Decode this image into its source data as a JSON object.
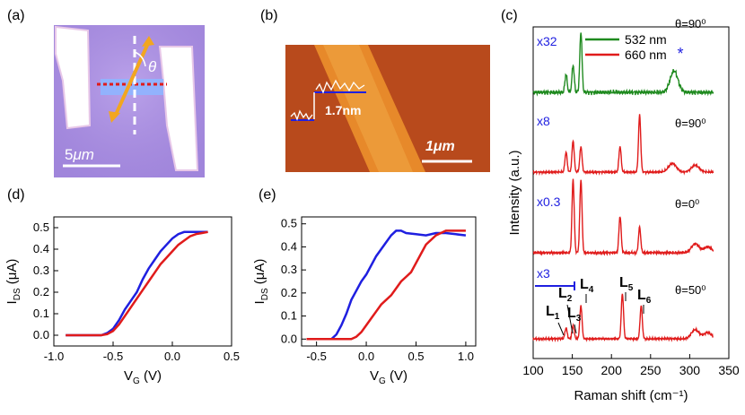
{
  "panels": {
    "a": {
      "label": "(a)",
      "scale_label": "5",
      "scale_unit": "μm",
      "angle": "θ"
    },
    "b": {
      "label": "(b)",
      "height_label": "1.7nm",
      "scale_label": "1μm"
    },
    "c": {
      "label": "(c)"
    },
    "d": {
      "label": "(d)"
    },
    "e": {
      "label": "(e)"
    }
  },
  "colors": {
    "blue": "#1f1fe0",
    "red": "#e01b1b",
    "green": "#1f8a1f"
  },
  "chart_data": [
    {
      "id": "d",
      "type": "line",
      "xlabel": "V_G (V)",
      "ylabel": "I_DS (μA)",
      "xlim": [
        -1.0,
        0.5
      ],
      "ylim": [
        -0.05,
        0.55
      ],
      "xticks": [
        "-1.0",
        "-0.5",
        "0.0",
        "0.5"
      ],
      "yticks": [
        "0.0",
        "0.1",
        "0.2",
        "0.3",
        "0.4",
        "0.5"
      ],
      "series": [
        {
          "name": "blue",
          "color": "#1f1fe0",
          "x": [
            -0.9,
            -0.6,
            -0.55,
            -0.5,
            -0.45,
            -0.4,
            -0.35,
            -0.3,
            -0.25,
            -0.2,
            -0.15,
            -0.1,
            -0.05,
            0.0,
            0.05,
            0.1,
            0.15,
            0.2,
            0.25,
            0.3
          ],
          "y": [
            0.0,
            0.0,
            0.01,
            0.03,
            0.07,
            0.12,
            0.16,
            0.2,
            0.26,
            0.31,
            0.35,
            0.39,
            0.42,
            0.45,
            0.47,
            0.48,
            0.48,
            0.48,
            0.48,
            0.48
          ]
        },
        {
          "name": "red",
          "color": "#e01b1b",
          "x": [
            -0.9,
            -0.6,
            -0.55,
            -0.5,
            -0.45,
            -0.4,
            -0.35,
            -0.3,
            -0.25,
            -0.2,
            -0.15,
            -0.1,
            -0.05,
            0.0,
            0.05,
            0.1,
            0.15,
            0.2,
            0.25,
            0.3
          ],
          "y": [
            0.0,
            0.0,
            0.005,
            0.02,
            0.05,
            0.09,
            0.13,
            0.17,
            0.21,
            0.25,
            0.29,
            0.33,
            0.36,
            0.39,
            0.42,
            0.44,
            0.46,
            0.47,
            0.475,
            0.48
          ]
        }
      ]
    },
    {
      "id": "e",
      "type": "line",
      "xlabel": "V_G (V)",
      "ylabel": "I_DS (μA)",
      "xlim": [
        -0.65,
        1.1
      ],
      "ylim": [
        -0.03,
        0.53
      ],
      "xticks": [
        "-0.5",
        "0.0",
        "0.5",
        "1.0"
      ],
      "yticks": [
        "0.0",
        "0.1",
        "0.2",
        "0.3",
        "0.4",
        "0.5"
      ],
      "series": [
        {
          "name": "blue",
          "color": "#1f1fe0",
          "x": [
            -0.6,
            -0.35,
            -0.3,
            -0.25,
            -0.2,
            -0.15,
            -0.1,
            -0.05,
            0.0,
            0.05,
            0.1,
            0.15,
            0.2,
            0.25,
            0.3,
            0.35,
            0.4,
            0.5,
            0.6,
            0.7,
            0.8,
            0.9,
            1.0
          ],
          "y": [
            0.0,
            0.0,
            0.02,
            0.06,
            0.11,
            0.17,
            0.21,
            0.25,
            0.28,
            0.32,
            0.36,
            0.39,
            0.42,
            0.45,
            0.47,
            0.47,
            0.46,
            0.455,
            0.45,
            0.46,
            0.46,
            0.455,
            0.45
          ]
        },
        {
          "name": "red",
          "color": "#e01b1b",
          "x": [
            -0.6,
            -0.15,
            -0.1,
            -0.05,
            0.0,
            0.05,
            0.1,
            0.15,
            0.2,
            0.25,
            0.3,
            0.35,
            0.4,
            0.45,
            0.5,
            0.55,
            0.6,
            0.7,
            0.8,
            0.9,
            1.0
          ],
          "y": [
            0.0,
            0.0,
            0.01,
            0.03,
            0.06,
            0.09,
            0.12,
            0.15,
            0.17,
            0.19,
            0.22,
            0.25,
            0.27,
            0.29,
            0.33,
            0.37,
            0.41,
            0.45,
            0.47,
            0.47,
            0.47
          ]
        }
      ]
    },
    {
      "id": "c",
      "type": "line",
      "title": "",
      "xlabel": "Raman shift (cm⁻¹)",
      "ylabel": "Intensity (a.u.)",
      "xlim": [
        100,
        350
      ],
      "xticks": [
        "100",
        "150",
        "200",
        "250",
        "300",
        "350"
      ],
      "legend": [
        {
          "name": "532 nm",
          "color": "#1f8a1f"
        },
        {
          "name": "660 nm",
          "color": "#e01b1b"
        }
      ],
      "traces": [
        {
          "scale": "x32",
          "angle": "θ=90⁰",
          "laser": "532 nm",
          "color": "#1f8a1f",
          "peaks": [
            [
              142,
              0.3
            ],
            [
              151,
              0.45
            ],
            [
              161,
              1.0
            ],
            [
              280,
              0.35
            ]
          ],
          "star": "*"
        },
        {
          "scale": "x8",
          "angle": "θ=90⁰",
          "laser": "660 nm",
          "color": "#e01b1b",
          "peaks": [
            [
              142,
              0.35
            ],
            [
              151,
              0.55
            ],
            [
              161,
              0.45
            ],
            [
              211,
              0.45
            ],
            [
              236,
              1.0
            ],
            [
              278,
              0.15
            ],
            [
              307,
              0.12
            ]
          ]
        },
        {
          "scale": "x0.3",
          "angle": "θ=0⁰",
          "laser": "660 nm",
          "color": "#e01b1b",
          "peaks": [
            [
              151,
              1.0
            ],
            [
              161,
              1.0
            ],
            [
              211,
              0.5
            ],
            [
              236,
              0.35
            ],
            [
              307,
              0.12
            ],
            [
              323,
              0.08
            ]
          ]
        },
        {
          "scale": "x3",
          "angle": "θ=50⁰",
          "laser": "660 nm",
          "color": "#e01b1b",
          "peaks": [
            [
              142,
              0.18
            ],
            [
              151,
              0.22
            ],
            [
              161,
              0.55
            ],
            [
              214,
              0.75
            ],
            [
              238,
              0.55
            ],
            [
              307,
              0.15
            ],
            [
              323,
              0.1
            ]
          ]
        }
      ],
      "peak_labels": [
        "L1",
        "L2",
        "L3",
        "L4",
        "L5",
        "L6"
      ]
    }
  ]
}
